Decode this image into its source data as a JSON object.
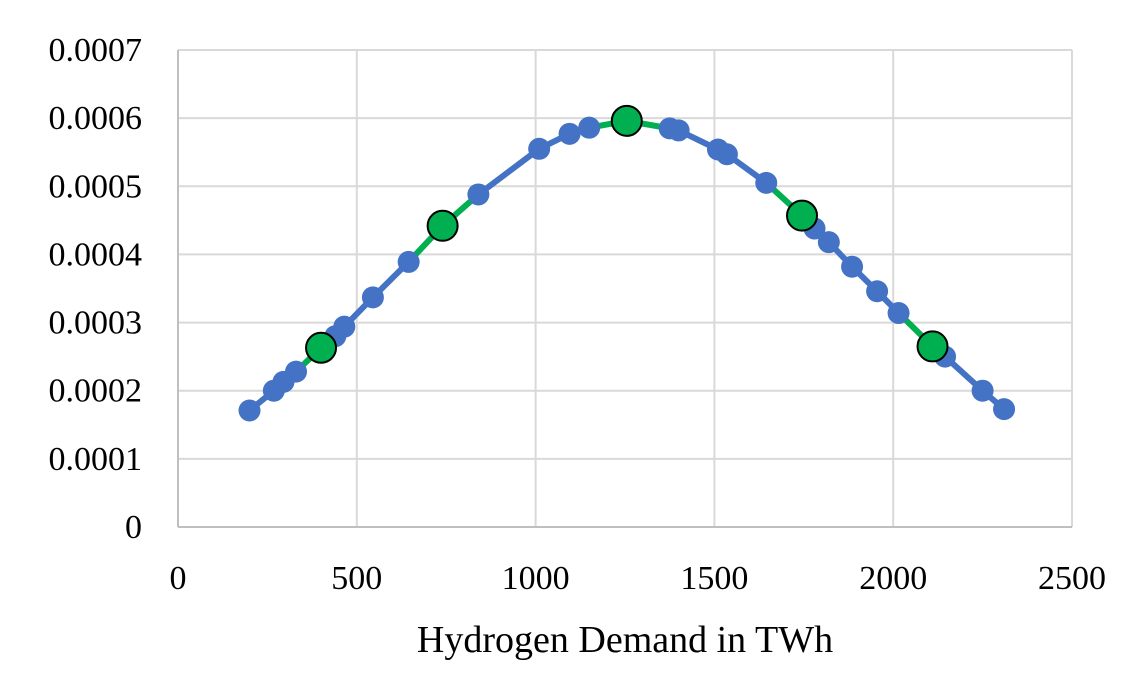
{
  "chart_data": {
    "type": "scatter",
    "title": "",
    "xlabel": "Hydrogen Demand in TWh",
    "ylabel": "",
    "xlim": [
      0,
      2500
    ],
    "ylim": [
      0,
      0.0007
    ],
    "x_ticks": [
      "0",
      "500",
      "1000",
      "1500",
      "2000",
      "2500"
    ],
    "y_ticks": [
      "0",
      "0.0001",
      "0.0002",
      "0.0003",
      "0.0004",
      "0.0005",
      "0.0006",
      "0.0007"
    ],
    "grid": true,
    "legend": "none",
    "series": [
      {
        "color": "#4472C4",
        "marker": "circle",
        "points": [
          [
            200,
            0.000171
          ],
          [
            268,
            0.0002
          ],
          [
            295,
            0.000213
          ],
          [
            330,
            0.000228
          ],
          [
            440,
            0.00028
          ],
          [
            465,
            0.000294
          ],
          [
            545,
            0.000337
          ],
          [
            645,
            0.000389
          ],
          [
            840,
            0.000488
          ],
          [
            1010,
            0.000555
          ],
          [
            1095,
            0.000577
          ],
          [
            1150,
            0.000586
          ],
          [
            1375,
            0.000585
          ],
          [
            1400,
            0.000582
          ],
          [
            1510,
            0.000554
          ],
          [
            1535,
            0.000547
          ],
          [
            1645,
            0.000505
          ],
          [
            1780,
            0.000438
          ],
          [
            1820,
            0.000418
          ],
          [
            1885,
            0.000382
          ],
          [
            1955,
            0.000346
          ],
          [
            2015,
            0.000314
          ],
          [
            2145,
            0.00025
          ],
          [
            2250,
            0.0002
          ],
          [
            2310,
            0.000173
          ]
        ]
      },
      {
        "color": "#00B050",
        "marker": "circle-outlined",
        "points": [
          [
            400,
            0.000263
          ],
          [
            740,
            0.000442
          ],
          [
            1255,
            0.000596
          ],
          [
            1745,
            0.000457
          ],
          [
            2110,
            0.000265
          ]
        ]
      }
    ]
  }
}
